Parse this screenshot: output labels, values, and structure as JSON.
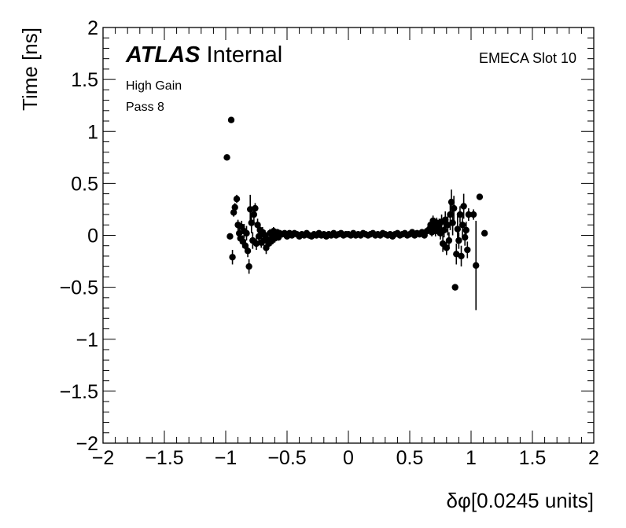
{
  "page": {
    "atlas_label": "ATLAS",
    "internal_label": "Internal",
    "gain_label": "High Gain",
    "pass_label": "Pass 8",
    "slot_label": "EMECA Slot 10"
  },
  "chart_data": {
    "type": "scatter",
    "title": "",
    "xlabel": "δφ[0.0245 units]",
    "ylabel": "Time [ns]",
    "xlim": [
      -2,
      2
    ],
    "ylim": [
      -2,
      2
    ],
    "x_ticks": [
      -2,
      -1.5,
      -1,
      -0.5,
      0,
      0.5,
      1,
      1.5,
      2
    ],
    "x_tick_labels": [
      "−2",
      "−1.5",
      "−1",
      "−0.5",
      "0",
      "0.5",
      "1",
      "1.5",
      "2"
    ],
    "y_ticks": [
      -2,
      -1.5,
      -1,
      -0.5,
      0,
      0.5,
      1,
      1.5,
      2
    ],
    "y_tick_labels": [
      "−2",
      "−1.5",
      "−1",
      "−0.5",
      "0",
      "0.5",
      "1",
      "1.5",
      "2"
    ],
    "grid": false,
    "marker_color": "#000000",
    "series": [
      {
        "points": [
          {
            "x": -0.99,
            "y": 0.75,
            "err": 0.0
          },
          {
            "x": -0.955,
            "y": 1.11,
            "err": 0.0
          },
          {
            "x": -0.965,
            "y": -0.01,
            "err": 0.0
          },
          {
            "x": -0.945,
            "y": -0.21,
            "err": 0.07
          },
          {
            "x": -0.935,
            "y": 0.22,
            "err": 0.04
          },
          {
            "x": -0.925,
            "y": 0.27,
            "err": 0.04
          },
          {
            "x": -0.91,
            "y": 0.35,
            "err": 0.04
          },
          {
            "x": -0.9,
            "y": 0.1,
            "err": 0.05
          },
          {
            "x": -0.89,
            "y": 0.02,
            "err": 0.05
          },
          {
            "x": -0.88,
            "y": -0.03,
            "err": 0.05
          },
          {
            "x": -0.87,
            "y": 0.08,
            "err": 0.06
          },
          {
            "x": -0.86,
            "y": -0.06,
            "err": 0.06
          },
          {
            "x": -0.85,
            "y": 0.04,
            "err": 0.07
          },
          {
            "x": -0.84,
            "y": -0.1,
            "err": 0.06
          },
          {
            "x": -0.83,
            "y": 0.02,
            "err": 0.07
          },
          {
            "x": -0.82,
            "y": -0.15,
            "err": 0.06
          },
          {
            "x": -0.81,
            "y": -0.3,
            "err": 0.07
          },
          {
            "x": -0.8,
            "y": 0.25,
            "err": 0.14
          },
          {
            "x": -0.79,
            "y": 0.12,
            "err": 0.1
          },
          {
            "x": -0.78,
            "y": -0.05,
            "err": 0.08
          },
          {
            "x": -0.77,
            "y": 0.2,
            "err": 0.08
          },
          {
            "x": -0.76,
            "y": 0.26,
            "err": 0.05
          },
          {
            "x": -0.75,
            "y": -0.08,
            "err": 0.06
          },
          {
            "x": -0.74,
            "y": 0.1,
            "err": 0.06
          },
          {
            "x": -0.73,
            "y": -0.01,
            "err": 0.05
          },
          {
            "x": -0.72,
            "y": 0.05,
            "err": 0.05
          },
          {
            "x": -0.71,
            "y": -0.07,
            "err": 0.05
          },
          {
            "x": -0.7,
            "y": 0.03,
            "err": 0.05
          },
          {
            "x": -0.69,
            "y": -0.05,
            "err": 0.05
          },
          {
            "x": -0.68,
            "y": 0.0,
            "err": 0.05
          },
          {
            "x": -0.67,
            "y": -0.12,
            "err": 0.06
          },
          {
            "x": -0.66,
            "y": -0.04,
            "err": 0.05
          },
          {
            "x": -0.65,
            "y": -0.08,
            "err": 0.05
          },
          {
            "x": -0.64,
            "y": 0.02,
            "err": 0.04
          },
          {
            "x": -0.63,
            "y": -0.06,
            "err": 0.04
          },
          {
            "x": -0.62,
            "y": -0.02,
            "err": 0.04
          },
          {
            "x": -0.61,
            "y": 0.04,
            "err": 0.04
          },
          {
            "x": -0.6,
            "y": -0.03,
            "err": 0.04
          },
          {
            "x": -0.59,
            "y": 0.01,
            "err": 0.03
          },
          {
            "x": -0.58,
            "y": 0.03,
            "err": 0.03
          },
          {
            "x": -0.57,
            "y": -0.02,
            "err": 0.03
          },
          {
            "x": -0.56,
            "y": 0.02,
            "err": 0.03
          },
          {
            "x": -0.54,
            "y": 0.01,
            "err": 0.02
          },
          {
            "x": -0.52,
            "y": 0.02,
            "err": 0.02
          },
          {
            "x": -0.5,
            "y": -0.01,
            "err": 0.02
          },
          {
            "x": -0.48,
            "y": 0.02,
            "err": 0.02
          },
          {
            "x": -0.46,
            "y": 0.0,
            "err": 0.02
          },
          {
            "x": -0.44,
            "y": 0.02,
            "err": 0.02
          },
          {
            "x": -0.42,
            "y": 0.01,
            "err": 0.02
          },
          {
            "x": -0.4,
            "y": -0.01,
            "err": 0.02
          },
          {
            "x": -0.38,
            "y": 0.01,
            "err": 0.02
          },
          {
            "x": -0.36,
            "y": 0.0,
            "err": 0.02
          },
          {
            "x": -0.34,
            "y": 0.02,
            "err": 0.02
          },
          {
            "x": -0.32,
            "y": 0.0,
            "err": 0.02
          },
          {
            "x": -0.3,
            "y": -0.01,
            "err": 0.02
          },
          {
            "x": -0.28,
            "y": 0.01,
            "err": 0.02
          },
          {
            "x": -0.26,
            "y": 0.0,
            "err": 0.02
          },
          {
            "x": -0.24,
            "y": 0.02,
            "err": 0.02
          },
          {
            "x": -0.22,
            "y": 0.0,
            "err": 0.02
          },
          {
            "x": -0.2,
            "y": 0.01,
            "err": 0.02
          },
          {
            "x": -0.18,
            "y": -0.01,
            "err": 0.02
          },
          {
            "x": -0.16,
            "y": 0.01,
            "err": 0.02
          },
          {
            "x": -0.14,
            "y": 0.0,
            "err": 0.02
          },
          {
            "x": -0.12,
            "y": 0.02,
            "err": 0.02
          },
          {
            "x": -0.1,
            "y": 0.0,
            "err": 0.02
          },
          {
            "x": -0.08,
            "y": 0.01,
            "err": 0.02
          },
          {
            "x": -0.06,
            "y": 0.02,
            "err": 0.02
          },
          {
            "x": -0.04,
            "y": 0.0,
            "err": 0.02
          },
          {
            "x": -0.02,
            "y": 0.01,
            "err": 0.02
          },
          {
            "x": 0.0,
            "y": 0.01,
            "err": 0.02
          },
          {
            "x": 0.02,
            "y": 0.0,
            "err": 0.02
          },
          {
            "x": 0.04,
            "y": 0.02,
            "err": 0.02
          },
          {
            "x": 0.06,
            "y": 0.0,
            "err": 0.02
          },
          {
            "x": 0.08,
            "y": 0.01,
            "err": 0.02
          },
          {
            "x": 0.1,
            "y": 0.0,
            "err": 0.02
          },
          {
            "x": 0.12,
            "y": 0.02,
            "err": 0.02
          },
          {
            "x": 0.14,
            "y": 0.01,
            "err": 0.02
          },
          {
            "x": 0.16,
            "y": 0.0,
            "err": 0.02
          },
          {
            "x": 0.18,
            "y": 0.01,
            "err": 0.02
          },
          {
            "x": 0.2,
            "y": 0.02,
            "err": 0.02
          },
          {
            "x": 0.22,
            "y": 0.0,
            "err": 0.02
          },
          {
            "x": 0.24,
            "y": 0.01,
            "err": 0.02
          },
          {
            "x": 0.26,
            "y": 0.0,
            "err": 0.02
          },
          {
            "x": 0.28,
            "y": 0.02,
            "err": 0.02
          },
          {
            "x": 0.3,
            "y": 0.01,
            "err": 0.02
          },
          {
            "x": 0.32,
            "y": 0.0,
            "err": 0.02
          },
          {
            "x": 0.34,
            "y": 0.01,
            "err": 0.02
          },
          {
            "x": 0.36,
            "y": -0.01,
            "err": 0.02
          },
          {
            "x": 0.38,
            "y": 0.01,
            "err": 0.02
          },
          {
            "x": 0.4,
            "y": 0.02,
            "err": 0.02
          },
          {
            "x": 0.42,
            "y": 0.0,
            "err": 0.02
          },
          {
            "x": 0.44,
            "y": 0.01,
            "err": 0.02
          },
          {
            "x": 0.46,
            "y": 0.02,
            "err": 0.02
          },
          {
            "x": 0.48,
            "y": 0.0,
            "err": 0.02
          },
          {
            "x": 0.5,
            "y": 0.01,
            "err": 0.02
          },
          {
            "x": 0.52,
            "y": 0.03,
            "err": 0.02
          },
          {
            "x": 0.54,
            "y": 0.0,
            "err": 0.02
          },
          {
            "x": 0.56,
            "y": 0.02,
            "err": 0.02
          },
          {
            "x": 0.58,
            "y": 0.01,
            "err": 0.02
          },
          {
            "x": 0.6,
            "y": 0.03,
            "err": 0.02
          },
          {
            "x": 0.62,
            "y": 0.0,
            "err": 0.03
          },
          {
            "x": 0.64,
            "y": 0.04,
            "err": 0.03
          },
          {
            "x": 0.66,
            "y": 0.06,
            "err": 0.04
          },
          {
            "x": 0.67,
            "y": 0.1,
            "err": 0.04
          },
          {
            "x": 0.68,
            "y": 0.03,
            "err": 0.04
          },
          {
            "x": 0.69,
            "y": 0.14,
            "err": 0.05
          },
          {
            "x": 0.7,
            "y": 0.08,
            "err": 0.05
          },
          {
            "x": 0.71,
            "y": 0.04,
            "err": 0.05
          },
          {
            "x": 0.72,
            "y": 0.12,
            "err": 0.05
          },
          {
            "x": 0.73,
            "y": 0.06,
            "err": 0.06
          },
          {
            "x": 0.74,
            "y": 0.1,
            "err": 0.06
          },
          {
            "x": 0.75,
            "y": 0.02,
            "err": 0.06
          },
          {
            "x": 0.76,
            "y": 0.13,
            "err": 0.07
          },
          {
            "x": 0.77,
            "y": -0.08,
            "err": 0.08
          },
          {
            "x": 0.78,
            "y": 0.05,
            "err": 0.07
          },
          {
            "x": 0.79,
            "y": 0.15,
            "err": 0.08
          },
          {
            "x": 0.8,
            "y": -0.12,
            "err": 0.07
          },
          {
            "x": 0.81,
            "y": 0.1,
            "err": 0.1
          },
          {
            "x": 0.82,
            "y": -0.05,
            "err": 0.08
          },
          {
            "x": 0.83,
            "y": 0.2,
            "err": 0.15
          },
          {
            "x": 0.84,
            "y": 0.32,
            "err": 0.12
          },
          {
            "x": 0.85,
            "y": 0.12,
            "err": 0.12
          },
          {
            "x": 0.86,
            "y": 0.26,
            "err": 0.12
          },
          {
            "x": 0.87,
            "y": -0.5,
            "err": 0.0
          },
          {
            "x": 0.88,
            "y": -0.18,
            "err": 0.1
          },
          {
            "x": 0.89,
            "y": 0.06,
            "err": 0.14
          },
          {
            "x": 0.9,
            "y": -0.05,
            "err": 0.08
          },
          {
            "x": 0.91,
            "y": 0.2,
            "err": 0.08
          },
          {
            "x": 0.92,
            "y": -0.2,
            "err": 0.1
          },
          {
            "x": 0.93,
            "y": 0.1,
            "err": 0.12
          },
          {
            "x": 0.94,
            "y": 0.28,
            "err": 0.12
          },
          {
            "x": 0.95,
            "y": -0.02,
            "err": 0.08
          },
          {
            "x": 0.96,
            "y": 0.05,
            "err": 0.08
          },
          {
            "x": 0.97,
            "y": -0.14,
            "err": 0.08
          },
          {
            "x": 0.98,
            "y": 0.2,
            "err": 0.06
          },
          {
            "x": 1.02,
            "y": 0.2,
            "err": 0.05
          },
          {
            "x": 1.04,
            "y": -0.29,
            "err": 0.43
          },
          {
            "x": 1.07,
            "y": 0.37,
            "err": 0.0
          },
          {
            "x": 1.11,
            "y": 0.02,
            "err": 0.0
          }
        ]
      }
    ]
  }
}
